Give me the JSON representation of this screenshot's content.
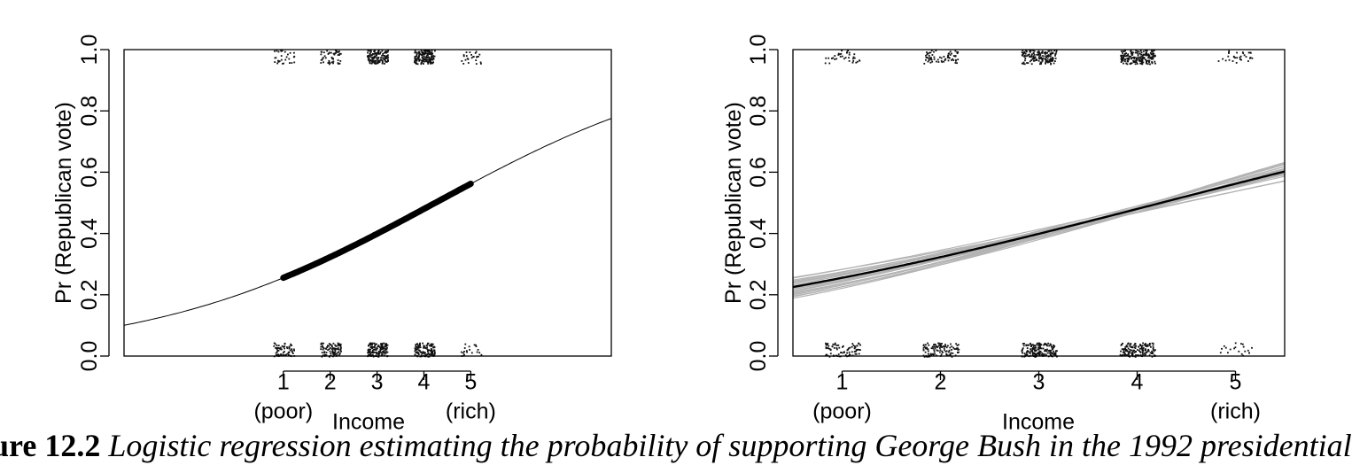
{
  "chart_data": [
    {
      "type": "scatter",
      "xlabel": "Income",
      "ylabel": "Pr (Republican vote)",
      "xlim": [
        -2.4,
        8.0
      ],
      "ylim": [
        0.0,
        1.0
      ],
      "x_ticks": [
        1,
        2,
        3,
        4,
        5
      ],
      "x_tick_labels": [
        "1",
        "2",
        "3",
        "4",
        "5"
      ],
      "x_sub_labels": [
        {
          "x": 1,
          "text": "(poor)"
        },
        {
          "x": 5,
          "text": "(rich)"
        }
      ],
      "y_ticks": [
        0.0,
        0.2,
        0.4,
        0.6,
        0.8,
        1.0
      ],
      "y_tick_labels": [
        "0.0",
        "0.2",
        "0.4",
        "0.6",
        "0.8",
        "1.0"
      ],
      "grid": false,
      "curve": {
        "intercept": -1.4,
        "slope": 0.33,
        "x_range": [
          -2.4,
          8.0
        ],
        "thick_range": [
          1,
          5
        ]
      },
      "jitter_points": {
        "levels": [
          1,
          2,
          3,
          4,
          5
        ],
        "count_y0": [
          70,
          90,
          140,
          120,
          20
        ],
        "count_y1": [
          30,
          50,
          140,
          150,
          25
        ],
        "spread_x": 0.22,
        "spread_y": 0.045
      }
    },
    {
      "type": "scatter",
      "xlabel": "Income",
      "ylabel": "Pr (Republican vote)",
      "xlim": [
        0.5,
        5.5
      ],
      "ylim": [
        0.0,
        1.0
      ],
      "x_ticks": [
        1,
        2,
        3,
        4,
        5
      ],
      "x_tick_labels": [
        "1",
        "2",
        "3",
        "4",
        "5"
      ],
      "x_sub_labels": [
        {
          "x": 1,
          "text": "(poor)"
        },
        {
          "x": 5,
          "text": "(rich)"
        }
      ],
      "y_ticks": [
        0.0,
        0.2,
        0.4,
        0.6,
        0.8,
        1.0
      ],
      "y_tick_labels": [
        "0.0",
        "0.2",
        "0.4",
        "0.6",
        "0.8",
        "1.0"
      ],
      "grid": false,
      "curve": {
        "intercept": -1.4,
        "slope": 0.33,
        "x_range": [
          0.5,
          5.5
        ]
      },
      "simulated_curves": [
        {
          "intercept": -1.2,
          "slope": 0.27
        },
        {
          "intercept": -1.25,
          "slope": 0.28
        },
        {
          "intercept": -1.3,
          "slope": 0.3
        },
        {
          "intercept": -1.32,
          "slope": 0.31
        },
        {
          "intercept": -1.35,
          "slope": 0.32
        },
        {
          "intercept": -1.38,
          "slope": 0.32
        },
        {
          "intercept": -1.42,
          "slope": 0.33
        },
        {
          "intercept": -1.45,
          "slope": 0.34
        },
        {
          "intercept": -1.48,
          "slope": 0.35
        },
        {
          "intercept": -1.5,
          "slope": 0.36
        },
        {
          "intercept": -1.55,
          "slope": 0.37
        },
        {
          "intercept": -1.58,
          "slope": 0.38
        },
        {
          "intercept": -1.62,
          "slope": 0.39
        },
        {
          "intercept": -1.66,
          "slope": 0.4
        },
        {
          "intercept": -1.28,
          "slope": 0.3
        },
        {
          "intercept": -1.52,
          "slope": 0.35
        },
        {
          "intercept": -1.36,
          "slope": 0.33
        },
        {
          "intercept": -1.44,
          "slope": 0.33
        },
        {
          "intercept": -1.6,
          "slope": 0.37
        },
        {
          "intercept": -1.22,
          "slope": 0.29
        }
      ],
      "jitter_points": {
        "levels": [
          1,
          2,
          3,
          4,
          5
        ],
        "count_y0": [
          80,
          110,
          170,
          150,
          20
        ],
        "count_y1": [
          35,
          70,
          160,
          190,
          30
        ],
        "spread_x": 0.18,
        "spread_y": 0.045
      }
    }
  ],
  "caption": {
    "number": "ure 12.2",
    "text": "  Logistic regression estimating the probability of supporting George Bush in the 1992 presidential"
  }
}
